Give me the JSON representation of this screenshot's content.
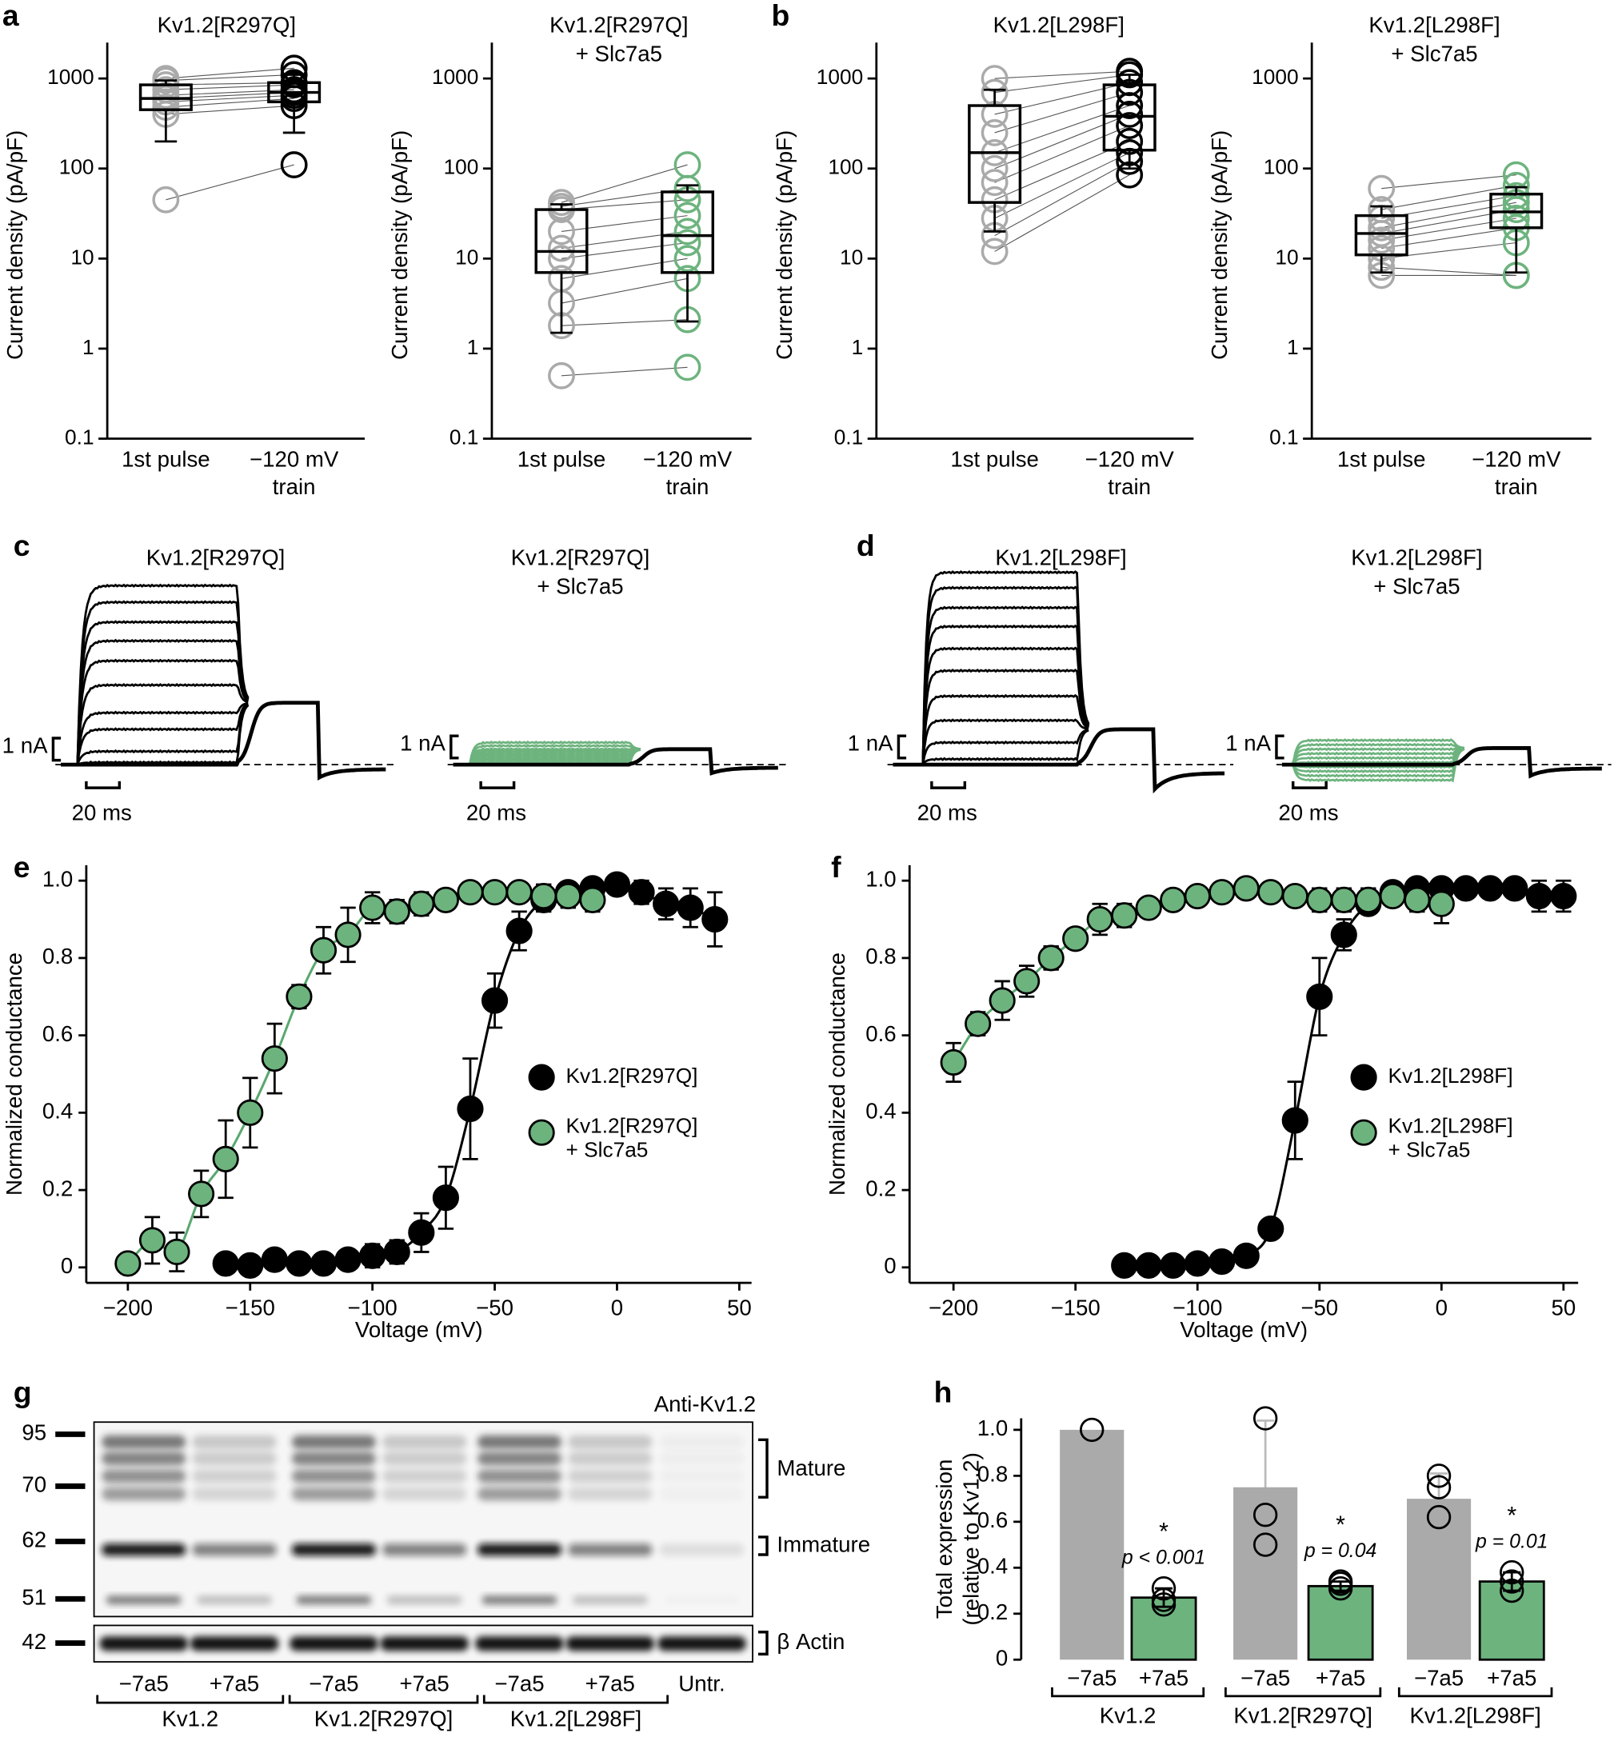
{
  "chart_data": [
    {
      "type": "box",
      "panel": "a",
      "title": [
        "Kv1.2[R297Q]"
      ],
      "title_color": "#000000",
      "ylabel": "Current density (pA/pF)",
      "log": true,
      "ylim": [
        0.1,
        2000
      ],
      "yticks": [
        0.1,
        1,
        10,
        100,
        1000
      ],
      "categories": [
        [
          "1st pulse"
        ],
        [
          "−120 mV",
          "train"
        ]
      ],
      "series": [
        {
          "color": "#aaaaaa",
          "q1": 450,
          "median": 600,
          "q3": 850,
          "whisker_low": 200,
          "whisker_high": 950,
          "points": [
            45,
            400,
            480,
            550,
            600,
            650,
            750,
            850,
            950,
            1000
          ]
        },
        {
          "color": "#000000",
          "q1": 550,
          "median": 700,
          "q3": 900,
          "whisker_low": 250,
          "whisker_high": 1100,
          "points": [
            110,
            500,
            600,
            650,
            700,
            750,
            850,
            900,
            1100,
            1300
          ]
        }
      ]
    },
    {
      "type": "box",
      "title": [
        "Kv1.2[R297Q]",
        "+ Slc7a5"
      ],
      "title_color": "#5aa86f",
      "ylabel": "Current density (pA/pF)",
      "log": true,
      "ylim": [
        0.1,
        2000
      ],
      "yticks": [
        0.1,
        1,
        10,
        100,
        1000
      ],
      "categories": [
        [
          "1st pulse"
        ],
        [
          "−120 mV",
          "train"
        ]
      ],
      "series": [
        {
          "color": "#aaaaaa",
          "q1": 7,
          "median": 12,
          "q3": 35,
          "whisker_low": 1.5,
          "whisker_high": 40,
          "points": [
            0.5,
            1.8,
            3.2,
            6,
            10,
            13,
            20,
            35,
            38,
            42
          ]
        },
        {
          "color": "#6db37e",
          "q1": 7,
          "median": 18,
          "q3": 55,
          "whisker_low": 2,
          "whisker_high": 65,
          "points": [
            0.62,
            2.1,
            6,
            10,
            15,
            20,
            30,
            45,
            60,
            110
          ]
        }
      ]
    },
    {
      "type": "box",
      "panel": "b",
      "title": [
        "Kv1.2[L298F]"
      ],
      "title_color": "#000000",
      "ylabel": "Current density (pA/pF)",
      "log": true,
      "ylim": [
        0.1,
        2000
      ],
      "yticks": [
        0.1,
        1,
        10,
        100,
        1000
      ],
      "categories": [
        [
          "1st pulse"
        ],
        [
          "−120 mV",
          "train"
        ]
      ],
      "series": [
        {
          "color": "#aaaaaa",
          "q1": 42,
          "median": 150,
          "q3": 500,
          "whisker_low": 20,
          "whisker_high": 750,
          "points": [
            12,
            18,
            28,
            45,
            70,
            100,
            150,
            250,
            400,
            700,
            1000
          ]
        },
        {
          "color": "#000000",
          "q1": 160,
          "median": 380,
          "q3": 850,
          "whisker_low": 100,
          "whisker_high": 1100,
          "points": [
            85,
            120,
            150,
            200,
            300,
            400,
            500,
            700,
            900,
            1100,
            1200
          ]
        }
      ]
    },
    {
      "type": "box",
      "title": [
        "Kv1.2[L298F]",
        "+ Slc7a5"
      ],
      "title_color": "#5aa86f",
      "ylabel": "Current density (pA/pF)",
      "log": true,
      "ylim": [
        0.1,
        2000
      ],
      "yticks": [
        0.1,
        1,
        10,
        100,
        1000
      ],
      "categories": [
        [
          "1st pulse"
        ],
        [
          "−120 mV",
          "train"
        ]
      ],
      "series": [
        {
          "color": "#aaaaaa",
          "q1": 11,
          "median": 19,
          "q3": 30,
          "whisker_low": 7,
          "whisker_high": 38,
          "points": [
            6.5,
            8,
            10,
            13,
            16,
            19,
            22,
            28,
            35,
            60
          ]
        },
        {
          "color": "#6db37e",
          "q1": 22,
          "median": 33,
          "q3": 52,
          "whisker_low": 7,
          "whisker_high": 62,
          "points": [
            6.5,
            6.5,
            15,
            22,
            28,
            35,
            42,
            50,
            65,
            85
          ]
        }
      ]
    },
    {
      "type": "traces",
      "panel": "c",
      "title": [
        "Kv1.2[R297Q]"
      ],
      "title_color": "#000000",
      "color": "#000000",
      "tail_color": "#000000",
      "scale_current": "1 nA",
      "scale_time": "20 ms"
    },
    {
      "type": "traces",
      "title": [
        "Kv1.2[R297Q]",
        "+ Slc7a5"
      ],
      "title_color": "#5aa86f",
      "color": "#6db37e",
      "tail_color": "#000000",
      "scale_current": "1 nA",
      "scale_time": "20 ms"
    },
    {
      "type": "traces",
      "panel": "d",
      "title": [
        "Kv1.2[L298F]"
      ],
      "title_color": "#000000",
      "color": "#000000",
      "tail_color": "#000000",
      "scale_current": "1 nA",
      "scale_time": "20 ms"
    },
    {
      "type": "traces",
      "title": [
        "Kv1.2[L298F]",
        "+ Slc7a5"
      ],
      "title_color": "#5aa86f",
      "color": "#6db37e",
      "tail_color": "#000000",
      "scale_current": "1 nA",
      "scale_time": "20 ms"
    },
    {
      "type": "scatter",
      "panel": "e",
      "xlabel": "Voltage (mV)",
      "ylabel": "Normalized conductance",
      "xlim": [
        -217,
        55
      ],
      "ylim": [
        -0.04,
        1.04
      ],
      "xticks": [
        {
          "value": -200,
          "label": "−200"
        },
        {
          "value": -150,
          "label": "−150"
        },
        {
          "value": -100,
          "label": "−100"
        },
        {
          "value": -50,
          "label": "−50"
        },
        0,
        50
      ],
      "yticks": [
        0,
        0.2,
        0.4,
        0.6,
        0.8,
        {
          "value": 1,
          "label": "1.0"
        }
      ],
      "series": [
        {
          "name": [
            "Kv1.2[R297Q]"
          ],
          "color": "#000000",
          "x": [
            -160,
            -150,
            -140,
            -130,
            -120,
            -110,
            -100,
            -90,
            -80,
            -70,
            -60,
            -50,
            -40,
            -30,
            -20,
            -10,
            0,
            10,
            20,
            30,
            40
          ],
          "values": [
            0.01,
            0.005,
            0.02,
            0.01,
            0.01,
            0.02,
            0.03,
            0.04,
            0.09,
            0.18,
            0.41,
            0.69,
            0.87,
            0.95,
            0.97,
            0.98,
            0.99,
            0.97,
            0.94,
            0.93,
            0.9
          ],
          "errors": [
            0.02,
            0.01,
            0.02,
            0.01,
            0.01,
            0.02,
            0.03,
            0.03,
            0.05,
            0.08,
            0.13,
            0.07,
            0.05,
            0.03,
            0.02,
            0.02,
            0.02,
            0.03,
            0.04,
            0.05,
            0.07
          ]
        },
        {
          "name": [
            "Kv1.2[R297Q]",
            "+ Slc7a5"
          ],
          "color": "#6db37e",
          "x": [
            -200,
            -190,
            -180,
            -170,
            -160,
            -150,
            -140,
            -130,
            -120,
            -110,
            -100,
            -90,
            -80,
            -70,
            -60,
            -50,
            -40,
            -30,
            -20,
            -10
          ],
          "values": [
            0.01,
            0.07,
            0.04,
            0.19,
            0.28,
            0.4,
            0.54,
            0.7,
            0.82,
            0.86,
            0.93,
            0.92,
            0.94,
            0.95,
            0.97,
            0.97,
            0.97,
            0.96,
            0.96,
            0.95
          ],
          "errors": [
            0.02,
            0.06,
            0.05,
            0.06,
            0.1,
            0.09,
            0.09,
            0.03,
            0.06,
            0.07,
            0.04,
            0.03,
            0.03,
            0.02,
            0.02,
            0.02,
            0.02,
            0.03,
            0.03,
            0.03
          ]
        }
      ]
    },
    {
      "type": "scatter",
      "panel": "f",
      "xlabel": "Voltage (mV)",
      "ylabel": "Normalized conductance",
      "xlim": [
        -218,
        56
      ],
      "ylim": [
        -0.04,
        1.04
      ],
      "xticks": [
        {
          "value": -200,
          "label": "−200"
        },
        {
          "value": -150,
          "label": "−150"
        },
        {
          "value": -100,
          "label": "−100"
        },
        {
          "value": -50,
          "label": "−50"
        },
        0,
        50
      ],
      "yticks": [
        0,
        0.2,
        0.4,
        0.6,
        0.8,
        {
          "value": 1,
          "label": "1.0"
        }
      ],
      "series": [
        {
          "name": [
            "Kv1.2[L298F]"
          ],
          "color": "#000000",
          "x": [
            -130,
            -120,
            -110,
            -100,
            -90,
            -80,
            -70,
            -60,
            -50,
            -40,
            -30,
            -20,
            -10,
            0,
            10,
            20,
            30,
            40,
            50
          ],
          "values": [
            0.005,
            0.005,
            0.005,
            0.01,
            0.015,
            0.03,
            0.1,
            0.38,
            0.7,
            0.86,
            0.94,
            0.97,
            0.98,
            0.98,
            0.98,
            0.98,
            0.98,
            0.96,
            0.96
          ],
          "errors": [
            0.01,
            0.01,
            0.01,
            0.01,
            0.01,
            0.01,
            0.02,
            0.1,
            0.1,
            0.04,
            0.02,
            0.02,
            0.02,
            0.02,
            0.02,
            0.02,
            0.02,
            0.04,
            0.04
          ]
        },
        {
          "name": [
            "Kv1.2[L298F]",
            "+ Slc7a5"
          ],
          "color": "#6db37e",
          "x": [
            -200,
            -190,
            -180,
            -170,
            -160,
            -150,
            -140,
            -130,
            -120,
            -110,
            -100,
            -90,
            -80,
            -70,
            -60,
            -50,
            -40,
            -30,
            -20,
            -10,
            0
          ],
          "values": [
            0.53,
            0.63,
            0.69,
            0.74,
            0.8,
            0.85,
            0.9,
            0.91,
            0.93,
            0.95,
            0.96,
            0.97,
            0.98,
            0.97,
            0.96,
            0.95,
            0.95,
            0.95,
            0.96,
            0.95,
            0.94
          ],
          "errors": [
            0.05,
            0.03,
            0.05,
            0.04,
            0.03,
            0.02,
            0.04,
            0.03,
            0.02,
            0.02,
            0.02,
            0.02,
            0.02,
            0.02,
            0.02,
            0.03,
            0.03,
            0.03,
            0.02,
            0.03,
            0.05
          ]
        }
      ]
    },
    {
      "type": "blot",
      "panel": "g",
      "antibody": "Anti-Kv1.2",
      "markers": [
        "95",
        "70",
        "62",
        "51",
        "42"
      ],
      "band_labels": [
        "Mature",
        "Immature",
        "β Actin"
      ],
      "lanes": [
        "−7a5",
        "+7a5",
        "−7a5",
        "+7a5",
        "−7a5",
        "+7a5",
        "Untr."
      ],
      "groups": [
        "Kv1.2",
        "Kv1.2[R297Q]",
        "Kv1.2[L298F]"
      ]
    },
    {
      "type": "bar",
      "panel": "h",
      "ylabel": [
        "Total expression",
        "(relative to Kv1.2)"
      ],
      "ylim": [
        0,
        1.05
      ],
      "yticks": [
        0,
        0.2,
        0.4,
        0.6,
        0.8,
        {
          "value": 1,
          "label": "1.0"
        }
      ],
      "groups": [
        "Kv1.2",
        "Kv1.2[R297Q]",
        "Kv1.2[L298F]"
      ],
      "categories": [
        [
          "−7a5",
          "+7a5"
        ],
        [
          "−7a5",
          "+7a5"
        ],
        [
          "−7a5",
          "+7a5"
        ]
      ],
      "colors": [
        "#aaaaaa",
        "#6db37e"
      ],
      "values": [
        [
          1.0,
          0.27
        ],
        [
          0.75,
          0.32
        ],
        [
          0.7,
          0.34
        ]
      ],
      "errors": [
        [
          null,
          0.04
        ],
        [
          0.29,
          0.02
        ],
        [
          0.11,
          0.04
        ]
      ],
      "points": [
        [
          [
            1.0
          ],
          [
            0.24,
            0.26,
            0.31
          ]
        ],
        [
          [
            0.5,
            0.63,
            1.05
          ],
          [
            0.31,
            0.33,
            0.34
          ]
        ],
        [
          [
            0.62,
            0.75,
            0.8
          ],
          [
            0.3,
            0.34,
            0.38
          ]
        ]
      ],
      "annotations": [
        [
          "*",
          "p < 0.001"
        ],
        [
          "*",
          "p = 0.04"
        ],
        [
          "*",
          "p = 0.01"
        ]
      ]
    }
  ]
}
